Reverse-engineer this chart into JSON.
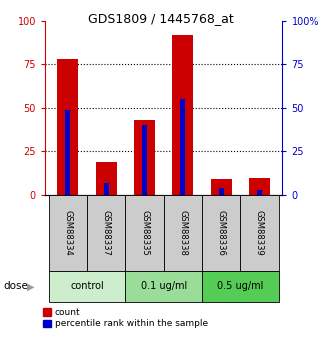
{
  "title": "GDS1809 / 1445768_at",
  "samples": [
    "GSM88334",
    "GSM88337",
    "GSM88335",
    "GSM88338",
    "GSM88336",
    "GSM88339"
  ],
  "groups": [
    {
      "label": "control",
      "indices": [
        0,
        1
      ],
      "color": "#cceecc"
    },
    {
      "label": "0.1 ug/ml",
      "indices": [
        2,
        3
      ],
      "color": "#99dd99"
    },
    {
      "label": "0.5 ug/ml",
      "indices": [
        4,
        5
      ],
      "color": "#55cc55"
    }
  ],
  "count_values": [
    78,
    19,
    43,
    92,
    9,
    10
  ],
  "percentile_values": [
    49,
    7,
    40,
    55,
    4,
    3
  ],
  "count_color": "#cc0000",
  "percentile_color": "#0000cc",
  "ylim": [
    0,
    100
  ],
  "yticks": [
    0,
    25,
    50,
    75,
    100
  ],
  "ytick_color_left": "#cc0000",
  "ytick_color_right": "#0000cc",
  "dose_label": "dose",
  "legend_count": "count",
  "legend_percentile": "percentile rank within the sample",
  "bg_color": "#ffffff",
  "label_area_color": "#cccccc",
  "title_fontsize": 9
}
